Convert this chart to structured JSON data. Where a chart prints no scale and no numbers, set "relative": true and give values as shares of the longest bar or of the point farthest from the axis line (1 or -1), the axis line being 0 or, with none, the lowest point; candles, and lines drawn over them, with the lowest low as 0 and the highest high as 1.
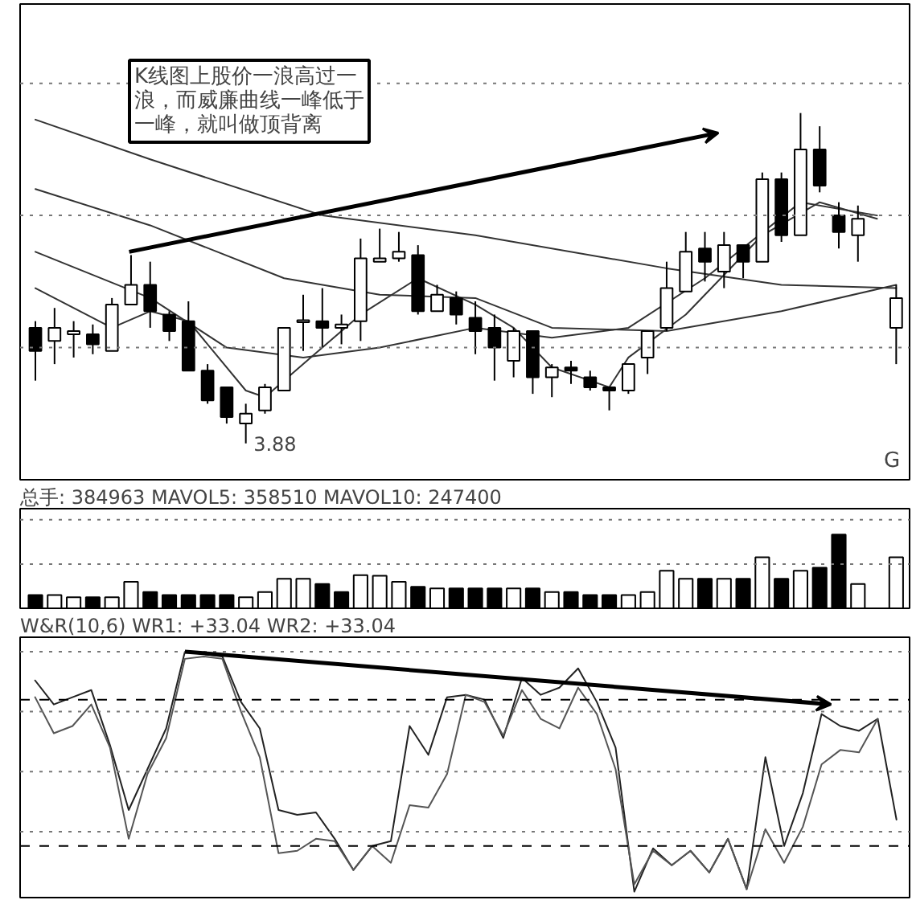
{
  "chart_data": [
    {
      "type": "candlestick",
      "relative": true,
      "categories": [
        null,
        null,
        null,
        null,
        null,
        null,
        null,
        null,
        null,
        null,
        null,
        null,
        null,
        null,
        null,
        null,
        null,
        null,
        null,
        null,
        null,
        null,
        null,
        null,
        null,
        null,
        null,
        null,
        null,
        null,
        null,
        null,
        null,
        null,
        null,
        null,
        null,
        null,
        null,
        null,
        null,
        null,
        null,
        null,
        null,
        null
      ],
      "ohlc": [
        [
          0.35,
          0.37,
          0.19,
          0.28
        ],
        [
          0.31,
          0.41,
          0.24,
          0.35
        ],
        [
          0.33,
          0.37,
          0.26,
          0.34
        ],
        [
          0.33,
          0.36,
          0.27,
          0.3
        ],
        [
          0.28,
          0.44,
          0.28,
          0.42
        ],
        [
          0.42,
          0.57,
          0.42,
          0.48
        ],
        [
          0.48,
          0.55,
          0.35,
          0.4
        ],
        [
          0.39,
          0.4,
          0.31,
          0.34
        ],
        [
          0.37,
          0.43,
          0.22,
          0.22
        ],
        [
          0.22,
          0.24,
          0.12,
          0.13
        ],
        [
          0.17,
          0.17,
          0.06,
          0.08
        ],
        [
          0.06,
          0.12,
          0.0,
          0.09
        ],
        [
          0.1,
          0.18,
          0.09,
          0.17
        ],
        [
          0.16,
          0.35,
          0.16,
          0.35
        ],
        [
          0.37,
          0.45,
          0.28,
          0.37
        ],
        [
          0.37,
          0.47,
          0.29,
          0.35
        ],
        [
          0.35,
          0.39,
          0.3,
          0.36
        ],
        [
          0.37,
          0.62,
          0.31,
          0.56
        ],
        [
          0.55,
          0.65,
          0.55,
          0.56
        ],
        [
          0.56,
          0.64,
          0.55,
          0.58
        ],
        [
          0.57,
          0.6,
          0.39,
          0.4
        ],
        [
          0.4,
          0.48,
          0.4,
          0.45
        ],
        [
          0.44,
          0.46,
          0.36,
          0.39
        ],
        [
          0.38,
          0.43,
          0.27,
          0.34
        ],
        [
          0.35,
          0.39,
          0.19,
          0.29
        ],
        [
          0.25,
          0.35,
          0.2,
          0.34
        ],
        [
          0.34,
          0.34,
          0.15,
          0.2
        ],
        [
          0.2,
          0.24,
          0.14,
          0.23
        ],
        [
          0.23,
          0.25,
          0.18,
          0.22
        ],
        [
          0.2,
          0.22,
          0.16,
          0.17
        ],
        [
          0.17,
          0.17,
          0.1,
          0.16
        ],
        [
          0.16,
          0.24,
          0.15,
          0.24
        ],
        [
          0.26,
          0.34,
          0.21,
          0.34
        ],
        [
          0.35,
          0.55,
          0.34,
          0.47
        ],
        [
          0.46,
          0.64,
          0.46,
          0.58
        ],
        [
          0.59,
          0.64,
          0.49,
          0.55
        ],
        [
          0.52,
          0.64,
          0.47,
          0.6
        ],
        [
          0.6,
          0.6,
          0.5,
          0.55
        ],
        [
          0.55,
          0.82,
          0.55,
          0.8
        ],
        [
          0.8,
          0.82,
          0.61,
          0.63
        ],
        [
          0.63,
          1.0,
          0.63,
          0.89
        ],
        [
          0.89,
          0.96,
          0.76,
          0.78
        ],
        [
          0.69,
          0.73,
          0.59,
          0.64
        ],
        [
          0.63,
          0.72,
          0.55,
          0.68
        ],
        null,
        [
          0.35,
          0.48,
          0.24,
          0.44
        ]
      ],
      "colors": [
        "#000000",
        "#ffffff",
        "#ffffff",
        "#000000",
        "#ffffff",
        "#ffffff",
        "#000000",
        "#000000",
        "#000000",
        "#000000",
        "#000000",
        "#ffffff",
        "#ffffff",
        "#ffffff",
        "#ffffff",
        "#000000",
        "#ffffff",
        "#ffffff",
        "#ffffff",
        "#ffffff",
        "#000000",
        "#ffffff",
        "#000000",
        "#000000",
        "#000000",
        "#ffffff",
        "#000000",
        "#ffffff",
        "#000000",
        "#000000",
        "#000000",
        "#ffffff",
        "#ffffff",
        "#ffffff",
        "#ffffff",
        "#000000",
        "#ffffff",
        "#000000",
        "#ffffff",
        "#000000",
        "#ffffff",
        "#000000",
        "#000000",
        "#ffffff",
        "#ffffff",
        "#ffffff"
      ],
      "series": [
        {
          "type": "line",
          "color": "#333333",
          "values": [
            0.98,
            null,
            null,
            null,
            null,
            null,
            0.86,
            null,
            null,
            null,
            null,
            null,
            null,
            null,
            null,
            0.69,
            null,
            null,
            null,
            null,
            null,
            null,
            null,
            0.63,
            null,
            null,
            null,
            null,
            null,
            null,
            null,
            null,
            null,
            0.53,
            null,
            null,
            null,
            null,
            null,
            0.48,
            null,
            null,
            null,
            null,
            null,
            0.47
          ]
        },
        {
          "type": "line",
          "color": "#333333",
          "values": [
            0.77,
            null,
            null,
            null,
            null,
            null,
            0.66,
            null,
            null,
            null,
            null,
            null,
            null,
            0.5,
            null,
            null,
            null,
            null,
            0.45,
            null,
            null,
            null,
            null,
            0.44,
            null,
            null,
            null,
            0.35,
            null,
            null,
            null,
            null,
            null,
            0.34,
            null,
            null,
            null,
            null,
            null,
            0.4,
            null,
            null,
            null,
            null,
            null,
            0.48
          ]
        },
        {
          "type": "line",
          "color": "#333333",
          "values": [
            0.58,
            null,
            null,
            null,
            null,
            null,
            0.44,
            null,
            null,
            null,
            0.29,
            null,
            null,
            null,
            0.26,
            null,
            null,
            null,
            0.29,
            null,
            null,
            null,
            null,
            0.35,
            null,
            null,
            null,
            0.32,
            null,
            null,
            null,
            0.35,
            null,
            null,
            null,
            0.5,
            null,
            null,
            null,
            null,
            0.73,
            null,
            null,
            null,
            0.69,
            null
          ]
        },
        {
          "type": "line",
          "color": "#333333",
          "values": [
            0.47,
            null,
            null,
            null,
            0.35,
            null,
            0.4,
            null,
            0.37,
            null,
            null,
            0.16,
            0.14,
            null,
            0.24,
            null,
            null,
            0.39,
            null,
            null,
            0.5,
            null,
            null,
            0.42,
            null,
            0.35,
            null,
            0.23,
            null,
            null,
            0.17,
            0.26,
            null,
            null,
            0.39,
            null,
            null,
            null,
            0.63,
            null,
            null,
            0.73,
            null,
            null,
            0.68,
            null
          ]
        }
      ],
      "ref_lines": [
        {
          "axis": "y",
          "value": 1.09,
          "color": "#777777",
          "line_style": "dotted"
        },
        {
          "axis": "y",
          "value": 0.69,
          "color": "#777777",
          "line_style": "dotted"
        },
        {
          "axis": "y",
          "value": 0.29,
          "color": "#777777",
          "line_style": "dotted"
        }
      ],
      "annotations": [
        "K线图上股价一浪高过一浪，而威廉曲线一峰低于一峰，就叫做顶背离",
        "3.88",
        "G"
      ]
    },
    {
      "type": "bar",
      "relative": true,
      "title": "总手: 384963 MAVOL5: 358510 MAVOL10: 247400",
      "categories": [
        null,
        null,
        null,
        null,
        null,
        null,
        null,
        null,
        null,
        null,
        null,
        null,
        null,
        null,
        null,
        null,
        null,
        null,
        null,
        null,
        null,
        null,
        null,
        null,
        null,
        null,
        null,
        null,
        null,
        null,
        null,
        null,
        null,
        null,
        null,
        null,
        null,
        null,
        null,
        null,
        null,
        null,
        null,
        null,
        null,
        null
      ],
      "values": [
        0.18,
        0.18,
        0.15,
        0.15,
        0.15,
        0.36,
        0.22,
        0.18,
        0.18,
        0.18,
        0.18,
        0.15,
        0.22,
        0.4,
        0.4,
        0.33,
        0.22,
        0.45,
        0.44,
        0.36,
        0.29,
        0.27,
        0.27,
        0.27,
        0.27,
        0.27,
        0.27,
        0.22,
        0.22,
        0.18,
        0.18,
        0.18,
        0.22,
        0.51,
        0.4,
        0.4,
        0.4,
        0.4,
        0.69,
        0.4,
        0.51,
        0.55,
        1,
        0.33,
        null,
        0.69
      ],
      "colors": [
        "#000000",
        "#ffffff",
        "#ffffff",
        "#000000",
        "#ffffff",
        "#ffffff",
        "#000000",
        "#000000",
        "#000000",
        "#000000",
        "#000000",
        "#ffffff",
        "#ffffff",
        "#ffffff",
        "#ffffff",
        "#000000",
        "#000000",
        "#ffffff",
        "#ffffff",
        "#ffffff",
        "#000000",
        "#ffffff",
        "#000000",
        "#000000",
        "#000000",
        "#ffffff",
        "#000000",
        "#ffffff",
        "#000000",
        "#000000",
        "#000000",
        "#ffffff",
        "#ffffff",
        "#ffffff",
        "#ffffff",
        "#000000",
        "#ffffff",
        "#000000",
        "#ffffff",
        "#000000",
        "#ffffff",
        "#000000",
        "#000000",
        "#ffffff",
        "#ffffff",
        "#ffffff"
      ],
      "ref_lines": [
        {
          "axis": "y",
          "value": 1.2,
          "color": "#777777",
          "line_style": "dotted"
        },
        {
          "axis": "y",
          "value": 0.6,
          "color": "#777777",
          "line_style": "dotted"
        }
      ]
    },
    {
      "type": "line",
      "relative": true,
      "title": "W&R(10,6) WR1: +33.04 WR2: +33.04",
      "categories": [
        null,
        null,
        null,
        null,
        null,
        null,
        null,
        null,
        null,
        null,
        null,
        null,
        null,
        null,
        null,
        null,
        null,
        null,
        null,
        null,
        null,
        null,
        null,
        null,
        null,
        null,
        null,
        null,
        null,
        null,
        null,
        null,
        null,
        null,
        null,
        null,
        null,
        null,
        null,
        null,
        null,
        null,
        null,
        null,
        null,
        null,
        null
      ],
      "series": [
        {
          "color": "#222222",
          "values": [
            0.88,
            0.78,
            0.81,
            0.84,
            0.61,
            0.34,
            0.51,
            0.68,
            1.0,
            0.99,
            0.98,
            0.79,
            0.68,
            0.34,
            0.32,
            0.33,
            0.22,
            0.09,
            0.19,
            0.21,
            0.69,
            0.57,
            0.81,
            0.82,
            0.8,
            0.64,
            0.89,
            0.82,
            0.85,
            0.93,
            0.79,
            0.6,
            0.0,
            0.18,
            0.11,
            0.17,
            0.08,
            0.22,
            0.01,
            0.56,
            0.19,
            0.41,
            0.74,
            0.69,
            0.67,
            0.72,
            0.3
          ]
        },
        {
          "color": "#555555",
          "values": [
            0.81,
            0.66,
            0.69,
            0.78,
            0.6,
            0.22,
            0.49,
            0.64,
            0.97,
            0.98,
            0.97,
            0.75,
            0.56,
            0.16,
            0.17,
            0.22,
            0.21,
            0.09,
            0.19,
            0.12,
            0.36,
            0.35,
            0.49,
            0.82,
            0.79,
            0.65,
            0.84,
            0.72,
            0.68,
            0.85,
            0.74,
            0.51,
            0.03,
            0.17,
            0.11,
            0.17,
            0.08,
            0.22,
            0.01,
            0.26,
            0.12,
            0.27,
            0.53,
            0.59,
            0.58,
            0.72,
            null
          ]
        }
      ],
      "ref_lines": [
        {
          "axis": "y",
          "value": 1.0,
          "color": "#777777",
          "line_style": "dotted"
        },
        {
          "axis": "y",
          "value": 0.75,
          "color": "#777777",
          "line_style": "dotted"
        },
        {
          "axis": "y",
          "value": 0.5,
          "color": "#777777",
          "line_style": "dotted"
        },
        {
          "axis": "y",
          "value": 0.25,
          "color": "#777777",
          "line_style": "dotted"
        },
        {
          "axis": "y",
          "value": 0.8,
          "color": "#000000",
          "line_style": "dashed"
        },
        {
          "axis": "y",
          "value": 0.19,
          "color": "#000000",
          "line_style": "dashed"
        }
      ]
    }
  ]
}
